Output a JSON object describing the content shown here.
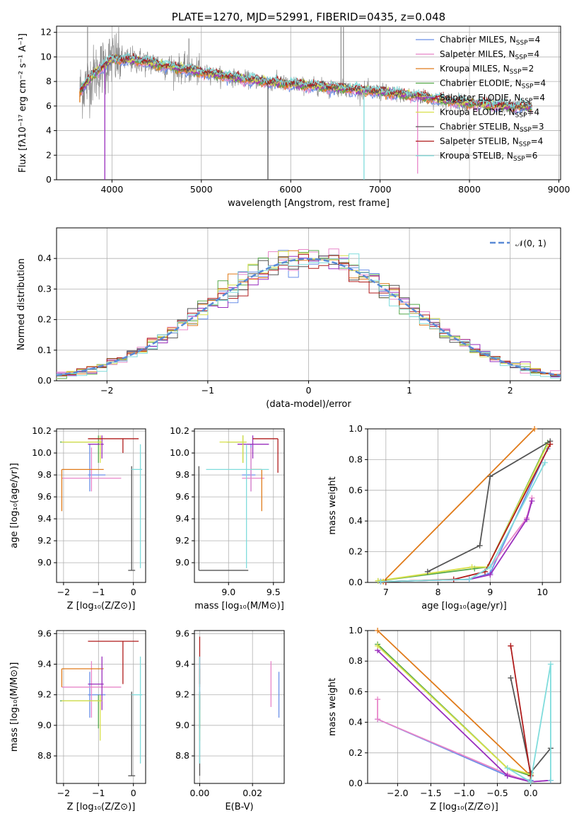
{
  "colors": [
    "#6a8fe8",
    "#e886c9",
    "#e07b1a",
    "#56a84a",
    "#9a2fbd",
    "#d8e04a",
    "#555555",
    "#b01c1c",
    "#7fdcdc"
  ],
  "chart_data": [
    {
      "id": "spectrum",
      "type": "line",
      "title": "PLATE=1270, MJD=52991, FIBERID=0435, z=0.048",
      "xlabel": "wavelength [Angstrom, rest frame]",
      "ylabel": "Flux [fλ10⁻¹⁷ erg cm⁻² s⁻¹ A⁻¹]",
      "xlim": [
        3380,
        9020
      ],
      "ylim": [
        0,
        12.5
      ],
      "xticks": [
        4000,
        5000,
        6000,
        7000,
        8000,
        9000
      ],
      "yticks": [
        0,
        2,
        4,
        6,
        8,
        10,
        12
      ],
      "data_range": [
        3640,
        8700
      ],
      "continuum_anchors": [
        [
          3640,
          7.2
        ],
        [
          3800,
          8.6
        ],
        [
          4000,
          9.8
        ],
        [
          4300,
          9.7
        ],
        [
          4800,
          9.0
        ],
        [
          5300,
          8.4
        ],
        [
          5800,
          7.9
        ],
        [
          6300,
          7.6
        ],
        [
          6800,
          7.3
        ],
        [
          7200,
          7.0
        ],
        [
          7600,
          6.6
        ],
        [
          8000,
          6.2
        ],
        [
          8400,
          6.0
        ],
        [
          8700,
          5.9
        ]
      ],
      "dropouts": [
        [
          3640,
          6.3
        ],
        [
          3920,
          0.0
        ],
        [
          5745,
          0.0
        ],
        [
          6820,
          0.0
        ],
        [
          7420,
          0.5
        ]
      ],
      "series": [
        {
          "name": "Chabrier MILES",
          "nssp": "4",
          "color": "#6a8fe8"
        },
        {
          "name": "Salpeter MILES",
          "nssp": "4",
          "color": "#e886c9"
        },
        {
          "name": "Kroupa MILES",
          "nssp": "2",
          "color": "#e07b1a"
        },
        {
          "name": "Chabrier ELODIE",
          "nssp": "4",
          "color": "#56a84a"
        },
        {
          "name": "Salpeter ELODIE",
          "nssp": "4",
          "color": "#9a2fbd"
        },
        {
          "name": "Kroupa ELODIE",
          "nssp": "4",
          "color": "#d8e04a"
        },
        {
          "name": "Chabrier STELIB",
          "nssp": "3",
          "color": "#555555"
        },
        {
          "name": "Salpeter STELIB",
          "nssp": "4",
          "color": "#b01c1c"
        },
        {
          "name": "Kroupa STELIB",
          "nssp": "6",
          "color": "#7fdcdc"
        }
      ]
    },
    {
      "id": "residuals",
      "type": "step",
      "xlabel": "(data-model)/error",
      "ylabel": "Normed distribution",
      "xlim": [
        -2.5,
        2.5
      ],
      "ylim": [
        0,
        0.5
      ],
      "xticks": [
        -2,
        -1,
        0,
        1,
        2
      ],
      "yticks": [
        0.0,
        0.1,
        0.2,
        0.3,
        0.4
      ],
      "legend": "𝒩(0, 1)",
      "bin_width": 0.1
    },
    {
      "id": "age_vs_Z",
      "type": "errorbar",
      "xlabel": "Z [log₁₀(Z/Z⊙)]",
      "ylabel": "age  [log₁₀(age/yr)]",
      "xlim": [
        -2.2,
        0.35
      ],
      "ylim": [
        8.82,
        10.22
      ],
      "xticks": [
        -2,
        -1,
        0
      ],
      "yticks": [
        9.0,
        9.2,
        9.4,
        9.6,
        9.8,
        10.0,
        10.2
      ],
      "points": [
        {
          "c": "#6a8fe8",
          "x": -1.25,
          "xl": -1.3,
          "xh": -0.8,
          "y": 9.8,
          "yl": 9.65,
          "yh": 10.08
        },
        {
          "c": "#e886c9",
          "x": -1.2,
          "xl": -2.05,
          "xh": -0.35,
          "y": 9.77,
          "yl": 9.65,
          "yh": 10.05
        },
        {
          "c": "#e07b1a",
          "x": -2.05,
          "xl": -2.05,
          "xh": -0.85,
          "y": 9.85,
          "yl": 9.47,
          "yh": 9.85
        },
        {
          "c": "#56a84a",
          "x": -1.0,
          "xl": -2.1,
          "xh": -0.9,
          "y": 10.1,
          "yl": 9.91,
          "yh": 10.16
        },
        {
          "c": "#9a2fbd",
          "x": -0.9,
          "xl": -1.3,
          "xh": -0.85,
          "y": 10.08,
          "yl": 9.95,
          "yh": 10.16
        },
        {
          "c": "#d8e04a",
          "x": -0.95,
          "xl": -2.05,
          "xh": -0.9,
          "y": 10.1,
          "yl": 9.91,
          "yh": 10.16
        },
        {
          "c": "#555555",
          "x": -0.05,
          "xl": -0.15,
          "xh": 0.05,
          "y": 8.93,
          "yl": 8.93,
          "yh": 9.88
        },
        {
          "c": "#b01c1c",
          "x": -0.3,
          "xl": -1.3,
          "xh": 0.15,
          "y": 10.13,
          "yl": 10.0,
          "yh": 10.13
        },
        {
          "c": "#7fdcdc",
          "x": 0.2,
          "xl": -0.05,
          "xh": 0.25,
          "y": 9.85,
          "yl": 8.95,
          "yh": 10.08
        }
      ]
    },
    {
      "id": "age_vs_mass",
      "type": "errorbar",
      "xlabel": "mass [log₁₀(M/M⊙)]",
      "ylabel": "",
      "xlim": [
        8.62,
        9.62
      ],
      "ylim": [
        8.82,
        10.22
      ],
      "xticks": [
        9.0,
        9.5
      ],
      "yticks": [
        9.0,
        9.2,
        9.4,
        9.6,
        9.8,
        10.0,
        10.2
      ],
      "points": [
        {
          "c": "#6a8fe8",
          "x": 9.25,
          "xl": 9.15,
          "xh": 9.3,
          "y": 9.8,
          "yl": 9.65,
          "yh": 10.08
        },
        {
          "c": "#e886c9",
          "x": 9.25,
          "xl": 9.15,
          "xh": 9.4,
          "y": 9.77,
          "yl": 9.65,
          "yh": 10.05
        },
        {
          "c": "#e07b1a",
          "x": 9.37,
          "xl": 9.25,
          "xh": 9.37,
          "y": 9.85,
          "yl": 9.47,
          "yh": 9.85
        },
        {
          "c": "#56a84a",
          "x": 9.16,
          "xl": 8.98,
          "xh": 9.2,
          "y": 10.1,
          "yl": 9.91,
          "yh": 10.16
        },
        {
          "c": "#9a2fbd",
          "x": 9.27,
          "xl": 9.1,
          "xh": 9.45,
          "y": 10.08,
          "yl": 9.95,
          "yh": 10.16
        },
        {
          "c": "#d8e04a",
          "x": 9.16,
          "xl": 8.9,
          "xh": 9.2,
          "y": 10.1,
          "yl": 9.91,
          "yh": 10.16
        },
        {
          "c": "#555555",
          "x": 8.67,
          "xl": 8.67,
          "xh": 9.22,
          "y": 8.93,
          "yl": 8.93,
          "yh": 9.88
        },
        {
          "c": "#b01c1c",
          "x": 9.55,
          "xl": 9.27,
          "xh": 9.55,
          "y": 10.13,
          "yl": 9.82,
          "yh": 10.13
        },
        {
          "c": "#7fdcdc",
          "x": 9.2,
          "xl": 8.75,
          "xh": 9.45,
          "y": 9.85,
          "yl": 8.95,
          "yh": 10.08
        }
      ]
    },
    {
      "id": "mw_vs_age",
      "type": "line",
      "xlabel": "age  [log₁₀(age/yr)]",
      "ylabel": "mass weight",
      "xlim": [
        6.65,
        10.35
      ],
      "ylim": [
        0,
        1.0
      ],
      "xticks": [
        7,
        8,
        9,
        10
      ],
      "yticks": [
        0.0,
        0.2,
        0.4,
        0.6,
        0.8,
        1.0
      ],
      "lines": [
        {
          "c": "#6a8fe8",
          "pts": [
            [
              6.9,
              0.005
            ],
            [
              8.6,
              0.02
            ],
            [
              9.0,
              0.06
            ],
            [
              10.1,
              0.87
            ]
          ]
        },
        {
          "c": "#e886c9",
          "pts": [
            [
              6.9,
              0.005
            ],
            [
              8.6,
              0.02
            ],
            [
              9.0,
              0.1
            ],
            [
              9.7,
              0.42
            ],
            [
              9.8,
              0.55
            ]
          ]
        },
        {
          "c": "#e07b1a",
          "pts": [
            [
              6.95,
              0.005
            ],
            [
              9.85,
              1.0
            ]
          ]
        },
        {
          "c": "#56a84a",
          "pts": [
            [
              6.85,
              0.01
            ],
            [
              8.7,
              0.09
            ],
            [
              8.95,
              0.1
            ],
            [
              10.1,
              0.91
            ]
          ]
        },
        {
          "c": "#9a2fbd",
          "pts": [
            [
              6.9,
              0.005
            ],
            [
              8.6,
              0.02
            ],
            [
              9.0,
              0.05
            ],
            [
              9.7,
              0.41
            ],
            [
              9.8,
              0.53
            ]
          ]
        },
        {
          "c": "#d8e04a",
          "pts": [
            [
              6.85,
              0.01
            ],
            [
              8.65,
              0.1
            ],
            [
              8.95,
              0.1
            ],
            [
              10.1,
              0.9
            ]
          ]
        },
        {
          "c": "#555555",
          "pts": [
            [
              7.8,
              0.07
            ],
            [
              8.8,
              0.24
            ],
            [
              9.0,
              0.69
            ],
            [
              10.15,
              0.92
            ]
          ]
        },
        {
          "c": "#b01c1c",
          "pts": [
            [
              7.0,
              0.005
            ],
            [
              8.3,
              0.02
            ],
            [
              8.9,
              0.07
            ],
            [
              10.15,
              0.9
            ]
          ]
        },
        {
          "c": "#7fdcdc",
          "pts": [
            [
              6.9,
              0.005
            ],
            [
              8.6,
              0.02
            ],
            [
              9.0,
              0.1
            ],
            [
              10.05,
              0.78
            ]
          ]
        }
      ]
    },
    {
      "id": "mass_vs_Z",
      "type": "errorbar",
      "xlabel": "Z [log₁₀(Z/Z⊙)]",
      "ylabel": "mass [log₁₀(M/M⊙)]",
      "xlim": [
        -2.2,
        0.35
      ],
      "ylim": [
        8.62,
        9.62
      ],
      "xticks": [
        -2,
        -1,
        0
      ],
      "yticks": [
        8.8,
        9.0,
        9.2,
        9.4,
        9.6
      ],
      "points": [
        {
          "c": "#6a8fe8",
          "x": -1.25,
          "xl": -1.3,
          "xh": -0.8,
          "y": 9.2,
          "yl": 9.05,
          "yh": 9.35
        },
        {
          "c": "#e886c9",
          "x": -1.2,
          "xl": -2.05,
          "xh": -0.35,
          "y": 9.25,
          "yl": 9.05,
          "yh": 9.42
        },
        {
          "c": "#e07b1a",
          "x": -2.05,
          "xl": -2.05,
          "xh": -0.85,
          "y": 9.37,
          "yl": 9.25,
          "yh": 9.37
        },
        {
          "c": "#56a84a",
          "x": -1.0,
          "xl": -2.1,
          "xh": -0.9,
          "y": 9.16,
          "yl": 8.98,
          "yh": 9.2
        },
        {
          "c": "#9a2fbd",
          "x": -0.9,
          "xl": -1.3,
          "xh": -0.85,
          "y": 9.27,
          "yl": 9.1,
          "yh": 9.45
        },
        {
          "c": "#d8e04a",
          "x": -0.95,
          "xl": -2.05,
          "xh": -0.9,
          "y": 9.16,
          "yl": 8.9,
          "yh": 9.2
        },
        {
          "c": "#555555",
          "x": -0.05,
          "xl": -0.15,
          "xh": 0.05,
          "y": 8.67,
          "yl": 8.67,
          "yh": 9.22
        },
        {
          "c": "#b01c1c",
          "x": -0.3,
          "xl": -1.3,
          "xh": 0.15,
          "y": 9.55,
          "yl": 9.27,
          "yh": 9.55
        },
        {
          "c": "#7fdcdc",
          "x": 0.2,
          "xl": -0.05,
          "xh": 0.25,
          "y": 9.2,
          "yl": 8.75,
          "yh": 9.45
        }
      ]
    },
    {
      "id": "mass_vs_ebv",
      "type": "errorbar",
      "xlabel": "E(B-V)",
      "ylabel": "",
      "xlim": [
        -0.002,
        0.032
      ],
      "ylim": [
        8.62,
        9.62
      ],
      "xticks": [
        0.0,
        0.02
      ],
      "ytick_labels_only": true,
      "yticks": [
        8.8,
        9.0,
        9.2,
        9.4,
        9.6
      ],
      "points": [
        {
          "c": "#6a8fe8",
          "x": 0.03,
          "y": 9.2,
          "yl": 9.05,
          "yh": 9.35
        },
        {
          "c": "#e886c9",
          "x": 0.027,
          "y": 9.25,
          "yl": 9.12,
          "yh": 9.42
        },
        {
          "c": "#e07b1a",
          "x": 0.0,
          "y": 9.37,
          "yl": 9.25,
          "yh": 9.37
        },
        {
          "c": "#56a84a",
          "x": 0.0,
          "y": 9.16,
          "yl": 8.98,
          "yh": 9.2
        },
        {
          "c": "#9a2fbd",
          "x": 0.0,
          "y": 9.27,
          "yl": 9.1,
          "yh": 9.45
        },
        {
          "c": "#d8e04a",
          "x": 0.0,
          "y": 9.16,
          "yl": 8.9,
          "yh": 9.2
        },
        {
          "c": "#555555",
          "x": 0.0,
          "y": 8.67,
          "yl": 8.67,
          "yh": 9.22
        },
        {
          "c": "#b01c1c",
          "x": 0.0,
          "y": 9.55,
          "yl": 9.27,
          "yh": 9.58
        },
        {
          "c": "#7fdcdc",
          "x": 0.0,
          "y": 9.2,
          "yl": 8.75,
          "yh": 9.45
        }
      ]
    },
    {
      "id": "mw_vs_Z",
      "type": "line",
      "xlabel": "Z [log₁₀(Z/Z⊙)]",
      "ylabel": "mass weight",
      "xlim": [
        -2.45,
        0.45
      ],
      "ylim": [
        0,
        1.0
      ],
      "xticks": [
        -2.0,
        -1.5,
        -1.0,
        -0.5,
        0.0
      ],
      "yticks": [
        0.0,
        0.2,
        0.4,
        0.6,
        0.8,
        1.0
      ],
      "lines": [
        {
          "c": "#6a8fe8",
          "pts": [
            [
              -2.3,
              0.42
            ],
            [
              -0.35,
              0.05
            ],
            [
              0.0,
              0.02
            ],
            [
              0.0,
              0.01
            ]
          ]
        },
        {
          "c": "#e886c9",
          "pts": [
            [
              -2.3,
              0.55
            ],
            [
              -2.3,
              0.42
            ],
            [
              -0.35,
              0.06
            ],
            [
              0.0,
              0.01
            ],
            [
              0.3,
              0.02
            ]
          ]
        },
        {
          "c": "#e07b1a",
          "pts": [
            [
              -2.3,
              1.0
            ],
            [
              0.0,
              0.05
            ],
            [
              0.0,
              0.01
            ]
          ]
        },
        {
          "c": "#56a84a",
          "pts": [
            [
              -2.3,
              0.91
            ],
            [
              -0.35,
              0.1
            ],
            [
              0.0,
              0.05
            ],
            [
              0.0,
              0.01
            ]
          ]
        },
        {
          "c": "#9a2fbd",
          "pts": [
            [
              -2.3,
              0.87
            ],
            [
              -0.35,
              0.05
            ],
            [
              0.0,
              0.01
            ],
            [
              0.3,
              0.02
            ]
          ]
        },
        {
          "c": "#d8e04a",
          "pts": [
            [
              -2.3,
              0.9
            ],
            [
              -0.35,
              0.1
            ],
            [
              0.0,
              0.06
            ],
            [
              0.0,
              0.01
            ]
          ]
        },
        {
          "c": "#555555",
          "pts": [
            [
              -0.3,
              0.69
            ],
            [
              0.0,
              0.07
            ],
            [
              0.3,
              0.23
            ]
          ]
        },
        {
          "c": "#b01c1c",
          "pts": [
            [
              -0.3,
              0.9
            ],
            [
              -0.3,
              0.9
            ],
            [
              0.0,
              0.05
            ],
            [
              0.0,
              0.01
            ]
          ]
        },
        {
          "c": "#7fdcdc",
          "pts": [
            [
              -0.35,
              0.1
            ],
            [
              0.0,
              0.01
            ],
            [
              0.3,
              0.78
            ],
            [
              0.3,
              0.02
            ]
          ]
        }
      ]
    }
  ]
}
